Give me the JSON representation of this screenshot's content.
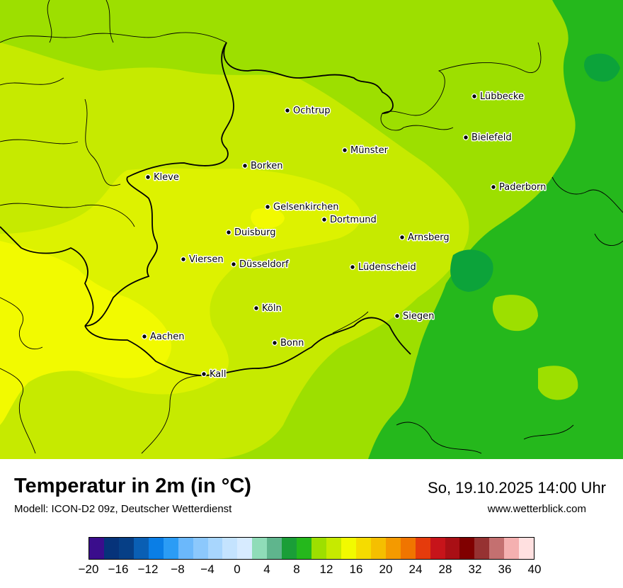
{
  "map": {
    "cities": [
      {
        "name": "Lübbecke"
      },
      {
        "name": "Ochtrup"
      },
      {
        "name": "Bielefeld"
      },
      {
        "name": "Münster"
      },
      {
        "name": "Borken"
      },
      {
        "name": "Kleve"
      },
      {
        "name": "Paderborn"
      },
      {
        "name": "Gelsenkirchen"
      },
      {
        "name": "Dortmund"
      },
      {
        "name": "Duisburg"
      },
      {
        "name": "Arnsberg"
      },
      {
        "name": "Viersen"
      },
      {
        "name": "Düsseldorf"
      },
      {
        "name": "Lüdenscheid"
      },
      {
        "name": "Köln"
      },
      {
        "name": "Siegen"
      },
      {
        "name": "Aachen"
      },
      {
        "name": "Bonn"
      },
      {
        "name": "Kall"
      }
    ],
    "field_colors": {
      "t10": "#9ddf00",
      "t12": "#c6ea00",
      "t14": "#ddf200",
      "t16": "#f2fa00",
      "t8": "#25b81c",
      "t6": "#0ca33a"
    }
  },
  "footer": {
    "title": "Temperatur in 2m (in °C)",
    "model": "Modell: ICON-D2 09z, Deutscher Wetterdienst",
    "datetime": "So, 19.10.2025 14:00 Uhr",
    "website": "www.wetterblick.com"
  },
  "legend": {
    "colors": [
      "#3a0d8c",
      "#06337a",
      "#063f86",
      "#0a5fb4",
      "#0a7ee6",
      "#2b9cf5",
      "#6bb8fb",
      "#8cc8fc",
      "#a8d6fd",
      "#c4e3fe",
      "#d7ebff",
      "#8fdcb8",
      "#5fb58d",
      "#1a9e38",
      "#25b81c",
      "#9ddf00",
      "#c6ea00",
      "#f2fa00",
      "#f5dc00",
      "#f5bf00",
      "#f49a00",
      "#f07500",
      "#e53b0c",
      "#c7141a",
      "#a90f15",
      "#800000",
      "#963232",
      "#c47070",
      "#f4b0b0",
      "#ffe0e0"
    ],
    "ticks": [
      "−20",
      "−16",
      "−12",
      "−8",
      "−4",
      "0",
      "4",
      "8",
      "12",
      "16",
      "20",
      "24",
      "28",
      "32",
      "36",
      "40"
    ]
  }
}
